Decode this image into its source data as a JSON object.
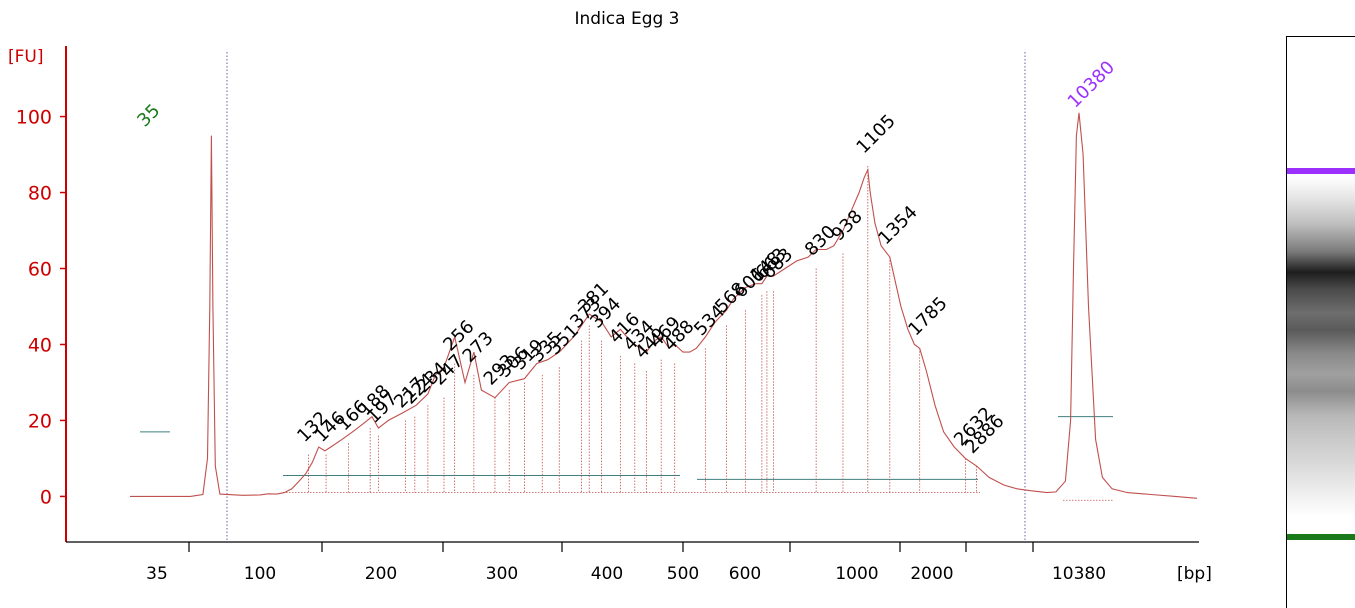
{
  "chart_data": {
    "type": "line",
    "title": "Indica Egg 3",
    "ylabel": "[FU]",
    "xlabel": "[bp]",
    "ylim": [
      -12,
      117
    ],
    "yticks": [
      0,
      20,
      40,
      60,
      80,
      100
    ],
    "xticks": [
      "35",
      "100",
      "200",
      "300",
      "400",
      "500",
      "600",
      "1000",
      "2000",
      "10380"
    ],
    "grid": false,
    "colors": {
      "trace": "#c0504d",
      "axis": "#cc0000",
      "lower_marker": "#1a7a1a",
      "upper_marker": "#9b30ff",
      "baseline": "#3f7f7f"
    },
    "trace": [
      [
        23,
        0
      ],
      [
        45,
        0
      ],
      [
        62,
        0
      ],
      [
        70,
        0.5
      ],
      [
        73,
        10
      ],
      [
        74.5,
        50
      ],
      [
        75.5,
        95
      ],
      [
        76.5,
        50
      ],
      [
        78,
        8
      ],
      [
        81,
        0.6
      ],
      [
        90,
        0.3
      ],
      [
        100,
        0.4
      ],
      [
        105,
        0.7
      ],
      [
        110,
        0.6
      ],
      [
        115,
        1
      ],
      [
        120,
        2
      ],
      [
        125,
        4
      ],
      [
        130,
        6
      ],
      [
        135,
        9
      ],
      [
        140,
        13
      ],
      [
        145,
        12
      ],
      [
        150,
        13
      ],
      [
        160,
        15
      ],
      [
        170,
        17
      ],
      [
        180,
        19
      ],
      [
        190,
        21
      ],
      [
        197,
        18
      ],
      [
        205,
        20
      ],
      [
        215,
        22
      ],
      [
        225,
        24
      ],
      [
        234,
        27
      ],
      [
        240,
        32
      ],
      [
        247,
        34
      ],
      [
        256,
        42
      ],
      [
        265,
        30
      ],
      [
        273,
        38
      ],
      [
        280,
        28
      ],
      [
        293,
        26
      ],
      [
        306,
        30
      ],
      [
        319,
        31
      ],
      [
        330,
        35
      ],
      [
        340,
        36
      ],
      [
        351,
        38
      ],
      [
        365,
        42
      ],
      [
        373,
        45
      ],
      [
        381,
        48
      ],
      [
        394,
        46
      ],
      [
        405,
        42
      ],
      [
        416,
        44
      ],
      [
        424,
        42
      ],
      [
        434,
        40
      ],
      [
        449,
        38
      ],
      [
        460,
        41
      ],
      [
        469,
        42
      ],
      [
        480,
        39
      ],
      [
        488,
        40
      ],
      [
        500,
        38
      ],
      [
        510,
        38
      ],
      [
        520,
        39
      ],
      [
        534,
        42
      ],
      [
        550,
        46
      ],
      [
        568,
        49
      ],
      [
        580,
        52
      ],
      [
        601,
        55
      ],
      [
        630,
        56
      ],
      [
        648,
        56
      ],
      [
        663,
        58
      ],
      [
        683,
        58
      ],
      [
        720,
        60
      ],
      [
        760,
        62
      ],
      [
        800,
        63
      ],
      [
        830,
        65
      ],
      [
        870,
        65
      ],
      [
        900,
        66
      ],
      [
        938,
        70
      ],
      [
        980,
        76
      ],
      [
        1020,
        80
      ],
      [
        1070,
        84
      ],
      [
        1105,
        86
      ],
      [
        1130,
        80
      ],
      [
        1180,
        72
      ],
      [
        1250,
        66
      ],
      [
        1354,
        63
      ],
      [
        1420,
        57
      ],
      [
        1500,
        50
      ],
      [
        1600,
        44
      ],
      [
        1700,
        40
      ],
      [
        1785,
        39
      ],
      [
        1900,
        33
      ],
      [
        2050,
        24
      ],
      [
        2200,
        17
      ],
      [
        2400,
        13
      ],
      [
        2632,
        10
      ],
      [
        2886,
        8
      ],
      [
        3200,
        5
      ],
      [
        3700,
        3
      ],
      [
        4500,
        2
      ],
      [
        5500,
        1.5
      ],
      [
        7000,
        1
      ],
      [
        8000,
        1.2
      ],
      [
        9000,
        4
      ],
      [
        9500,
        20
      ],
      [
        9800,
        60
      ],
      [
        10100,
        95
      ],
      [
        10380,
        101
      ],
      [
        10600,
        90
      ],
      [
        10900,
        50
      ],
      [
        11300,
        15
      ],
      [
        11700,
        5
      ],
      [
        12300,
        2
      ],
      [
        13300,
        1
      ],
      [
        15000,
        0.5
      ],
      [
        17000,
        0
      ],
      [
        19000,
        -0.5
      ]
    ],
    "markers": [
      {
        "label": "35",
        "bp": 35,
        "fu": 96,
        "color": "#1a7a1a"
      },
      {
        "label": "10380",
        "bp": 10380,
        "fu": 101,
        "color": "#9b30ff"
      }
    ],
    "peaks": [
      {
        "label": "132",
        "bp": 132,
        "fu": 13
      },
      {
        "label": "146",
        "bp": 146,
        "fu": 13
      },
      {
        "label": "166",
        "bp": 166,
        "fu": 16
      },
      {
        "label": "188",
        "bp": 188,
        "fu": 20
      },
      {
        "label": "197",
        "bp": 197,
        "fu": 18
      },
      {
        "label": "217",
        "bp": 217,
        "fu": 22
      },
      {
        "label": "224",
        "bp": 224,
        "fu": 23
      },
      {
        "label": "234",
        "bp": 234,
        "fu": 26
      },
      {
        "label": "247",
        "bp": 247,
        "fu": 28
      },
      {
        "label": "256",
        "bp": 256,
        "fu": 37
      },
      {
        "label": "273",
        "bp": 273,
        "fu": 34
      },
      {
        "label": "293",
        "bp": 293,
        "fu": 28
      },
      {
        "label": "306",
        "bp": 306,
        "fu": 30
      },
      {
        "label": "319",
        "bp": 319,
        "fu": 32
      },
      {
        "label": "335",
        "bp": 335,
        "fu": 34
      },
      {
        "label": "351",
        "bp": 351,
        "fu": 36
      },
      {
        "label": "373",
        "bp": 373,
        "fu": 43
      },
      {
        "label": "381",
        "bp": 381,
        "fu": 47
      },
      {
        "label": "394",
        "bp": 394,
        "fu": 43
      },
      {
        "label": "416",
        "bp": 416,
        "fu": 39
      },
      {
        "label": "434",
        "bp": 434,
        "fu": 37
      },
      {
        "label": "449",
        "bp": 449,
        "fu": 35
      },
      {
        "label": "469",
        "bp": 469,
        "fu": 38
      },
      {
        "label": "488",
        "bp": 488,
        "fu": 37
      },
      {
        "label": "534",
        "bp": 534,
        "fu": 41
      },
      {
        "label": "568",
        "bp": 568,
        "fu": 47
      },
      {
        "label": "601",
        "bp": 601,
        "fu": 51
      },
      {
        "label": "648",
        "bp": 648,
        "fu": 55
      },
      {
        "label": "663",
        "bp": 663,
        "fu": 56
      },
      {
        "label": "683",
        "bp": 683,
        "fu": 56
      },
      {
        "label": "830",
        "bp": 830,
        "fu": 62
      },
      {
        "label": "938",
        "bp": 938,
        "fu": 66
      },
      {
        "label": "1105",
        "bp": 1105,
        "fu": 89
      },
      {
        "label": "1354",
        "bp": 1354,
        "fu": 65
      },
      {
        "label": "1785",
        "bp": 1785,
        "fu": 41
      },
      {
        "label": "2632",
        "bp": 2632,
        "fu": 12
      },
      {
        "label": "2886",
        "bp": 2886,
        "fu": 10
      }
    ]
  }
}
